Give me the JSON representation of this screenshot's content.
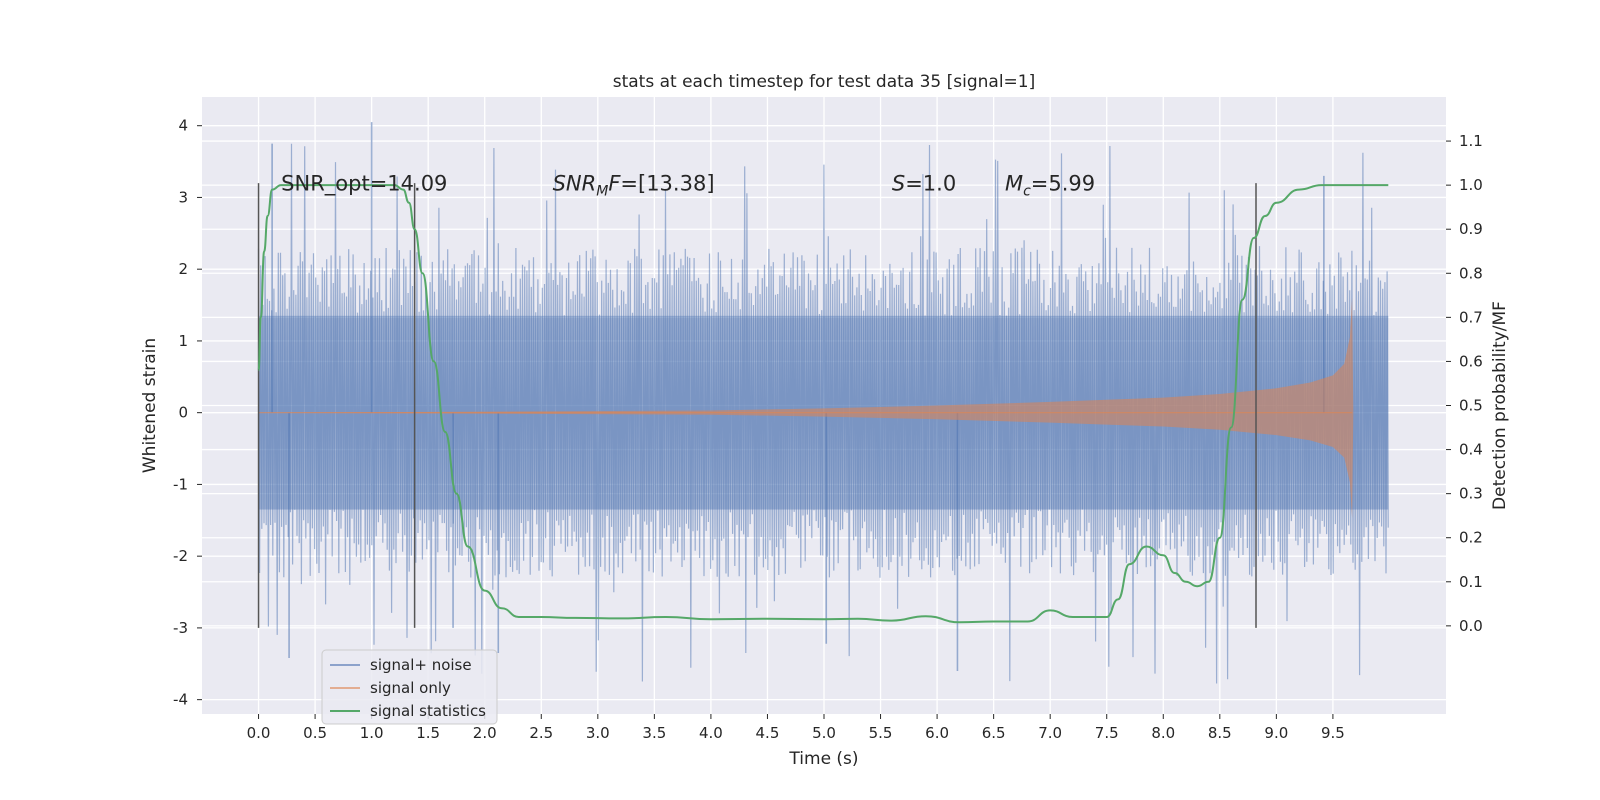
{
  "chart_data": {
    "type": "line",
    "title": "stats at each timestep for test data 35 [signal=1]",
    "xlabel": "Time (s)",
    "ylabel": "Whitened strain",
    "ylabel_right": "Detection probability/MF",
    "xlim": [
      -0.5,
      10.5
    ],
    "ylim": [
      -4.2,
      4.4
    ],
    "ylim_right": [
      -0.2,
      1.2
    ],
    "xticks": [
      0.0,
      0.5,
      1.0,
      1.5,
      2.0,
      2.5,
      3.0,
      3.5,
      4.0,
      4.5,
      5.0,
      5.5,
      6.0,
      6.5,
      7.0,
      7.5,
      8.0,
      8.5,
      9.0,
      9.5
    ],
    "yticks": [
      -4,
      -3,
      -2,
      -1,
      0,
      1,
      2,
      3,
      4
    ],
    "yticks_right": [
      0.0,
      0.1,
      0.2,
      0.3,
      0.4,
      0.5,
      0.6,
      0.7,
      0.8,
      0.9,
      1.0,
      1.1
    ],
    "grid": true,
    "legend_position": "lower-left",
    "colors": {
      "signal_noise": "#4c72b0",
      "signal_only": "#dd8452",
      "signal_statistics": "#55a868",
      "background": "#eaeaf2"
    },
    "series": [
      {
        "name": "signal+ noise",
        "axis": "left",
        "kind": "noise-envelope",
        "x_range": [
          0.0,
          9.99
        ],
        "core_amplitude": 1.35,
        "typical_peak": 2.3,
        "max_value": 4.05,
        "min_value": -3.6
      },
      {
        "name": "signal only",
        "axis": "left",
        "kind": "chirp-envelope",
        "x": [
          0.0,
          4.0,
          5.0,
          6.0,
          7.0,
          7.5,
          8.0,
          8.5,
          9.0,
          9.3,
          9.5,
          9.6,
          9.65,
          9.67
        ],
        "amplitude": [
          0.0,
          0.03,
          0.06,
          0.1,
          0.15,
          0.18,
          0.21,
          0.26,
          0.34,
          0.42,
          0.52,
          0.68,
          1.05,
          1.6
        ]
      },
      {
        "name": "signal statistics",
        "axis": "right",
        "x": [
          0.0,
          0.02,
          0.05,
          0.08,
          0.12,
          0.2,
          0.4,
          0.6,
          0.8,
          1.0,
          1.1,
          1.2,
          1.28,
          1.33,
          1.38,
          1.45,
          1.55,
          1.65,
          1.75,
          1.85,
          2.0,
          2.15,
          2.3,
          2.5,
          2.8,
          3.2,
          3.6,
          4.0,
          4.5,
          5.0,
          5.3,
          5.6,
          5.9,
          6.2,
          6.5,
          6.8,
          7.0,
          7.2,
          7.5,
          7.6,
          7.7,
          7.85,
          8.0,
          8.1,
          8.2,
          8.3,
          8.4,
          8.5,
          8.6,
          8.7,
          8.8,
          8.9,
          9.0,
          9.2,
          9.4,
          9.6,
          9.99
        ],
        "values": [
          0.58,
          0.7,
          0.85,
          0.93,
          0.99,
          1.0,
          1.0,
          1.0,
          1.0,
          1.0,
          1.0,
          1.0,
          0.99,
          0.96,
          0.9,
          0.8,
          0.6,
          0.44,
          0.3,
          0.18,
          0.08,
          0.04,
          0.02,
          0.02,
          0.018,
          0.017,
          0.02,
          0.015,
          0.016,
          0.015,
          0.016,
          0.012,
          0.022,
          0.008,
          0.01,
          0.01,
          0.035,
          0.02,
          0.02,
          0.06,
          0.14,
          0.18,
          0.16,
          0.12,
          0.1,
          0.09,
          0.1,
          0.2,
          0.45,
          0.74,
          0.88,
          0.93,
          0.96,
          0.99,
          1.0,
          1.0,
          1.0
        ]
      }
    ],
    "vertical_markers": [
      {
        "x": 0.0,
        "y_range": [
          -3.0,
          3.2
        ]
      },
      {
        "x": 1.38,
        "y_range": [
          -3.0,
          3.2
        ]
      },
      {
        "x": 8.82,
        "y_range": [
          -3.0,
          3.2
        ]
      }
    ],
    "annotations": [
      {
        "id": "snr-opt",
        "x": 0.2,
        "y": 3.15,
        "text": "SNR_opt=14.09",
        "italic": false,
        "kind": "plain"
      },
      {
        "id": "snr-mf",
        "x": 2.6,
        "y": 3.15,
        "base": "SNR",
        "sub": "M",
        "suffix": "F=[13.38]",
        "kind": "subscript"
      },
      {
        "id": "s-value",
        "x": 5.6,
        "y": 3.15,
        "base": "S",
        "sub": "",
        "suffix": "=1.0",
        "kind": "subscript"
      },
      {
        "id": "mc-value",
        "x": 6.6,
        "y": 3.15,
        "base": "M",
        "sub": "c",
        "suffix": "=5.99",
        "kind": "subscript"
      }
    ]
  }
}
